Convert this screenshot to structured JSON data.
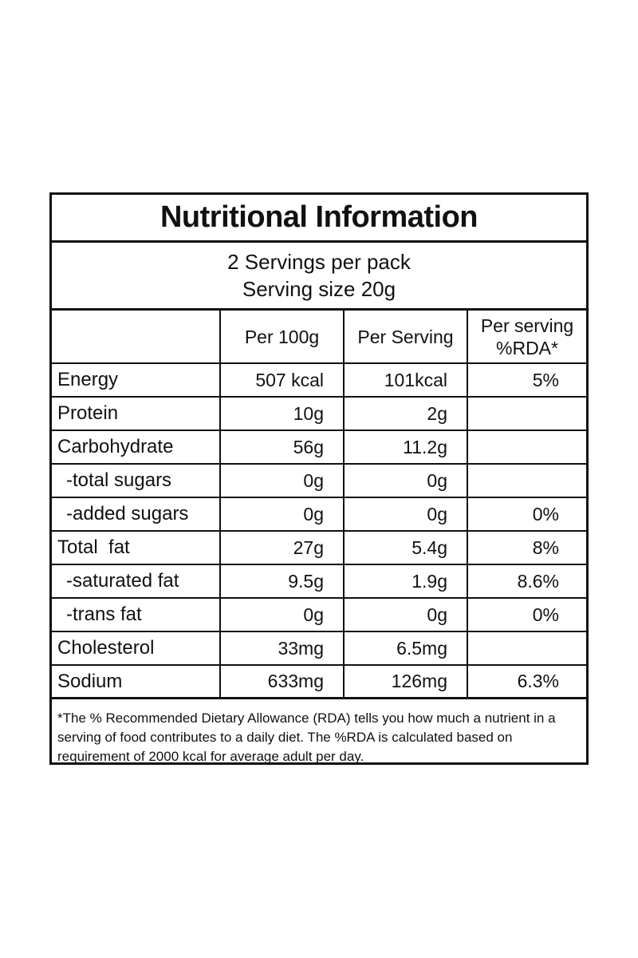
{
  "title": "Nutritional Information",
  "servings": {
    "per_pack": "2 Servings per pack",
    "size": "Serving size 20g"
  },
  "headers": {
    "blank": "",
    "per100g": "Per 100g",
    "per_serving": "Per Serving",
    "rda_line1": "Per serving",
    "rda_line2": "%RDA*"
  },
  "rows": [
    {
      "name": "Energy",
      "per100g": "507 kcal",
      "per_serving": "101kcal",
      "rda": "5%"
    },
    {
      "name": "Protein",
      "per100g": "10g",
      "per_serving": "2g",
      "rda": ""
    },
    {
      "name": "Carbohydrate",
      "per100g": "56g",
      "per_serving": "11.2g",
      "rda": ""
    },
    {
      "name": "-total sugars",
      "per100g": "0g",
      "per_serving": "0g",
      "rda": ""
    },
    {
      "name": "-added sugars",
      "per100g": "0g",
      "per_serving": "0g",
      "rda": "0%"
    },
    {
      "name": "Total  fat",
      "per100g": "27g",
      "per_serving": "5.4g",
      "rda": "8%"
    },
    {
      "name": "-saturated fat",
      "per100g": "9.5g",
      "per_serving": "1.9g",
      "rda": "8.6%"
    },
    {
      "name": "-trans fat",
      "per100g": "0g",
      "per_serving": "0g",
      "rda": "0%"
    },
    {
      "name": "Cholesterol",
      "per100g": "33mg",
      "per_serving": "6.5mg",
      "rda": ""
    },
    {
      "name": "Sodium",
      "per100g": "633mg",
      "per_serving": "126mg",
      "rda": "6.3%"
    }
  ],
  "footnote": "*The % Recommended Dietary Allowance (RDA) tells you how much a nutrient in a serving of food contributes to a daily diet. The %RDA is calculated based on requirement of 2000 kcal for average adult per day."
}
